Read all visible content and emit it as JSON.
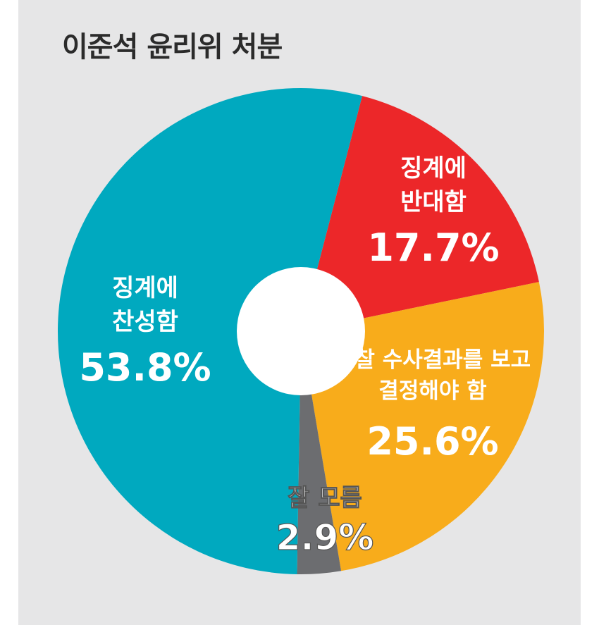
{
  "title": "이준석 윤리위 처분",
  "chart_data": {
    "type": "pie",
    "title": "이준석 윤리위 처분",
    "slices": [
      {
        "label_lines": [
          "징계에",
          "반대함"
        ],
        "value": 17.7,
        "value_label": "17.7%",
        "color": "#ec2729"
      },
      {
        "label_lines": [
          "경찰 수사결과를 보고",
          "결정해야 함"
        ],
        "value": 25.6,
        "value_label": "25.6%",
        "color": "#f8ac1b"
      },
      {
        "label_lines": [
          "잘 모름"
        ],
        "value": 2.9,
        "value_label": "2.9%",
        "color": "#6c6d70"
      },
      {
        "label_lines": [
          "징계에",
          "찬성함"
        ],
        "value": 53.8,
        "value_label": "53.8%",
        "color": "#00a9bf"
      }
    ]
  }
}
